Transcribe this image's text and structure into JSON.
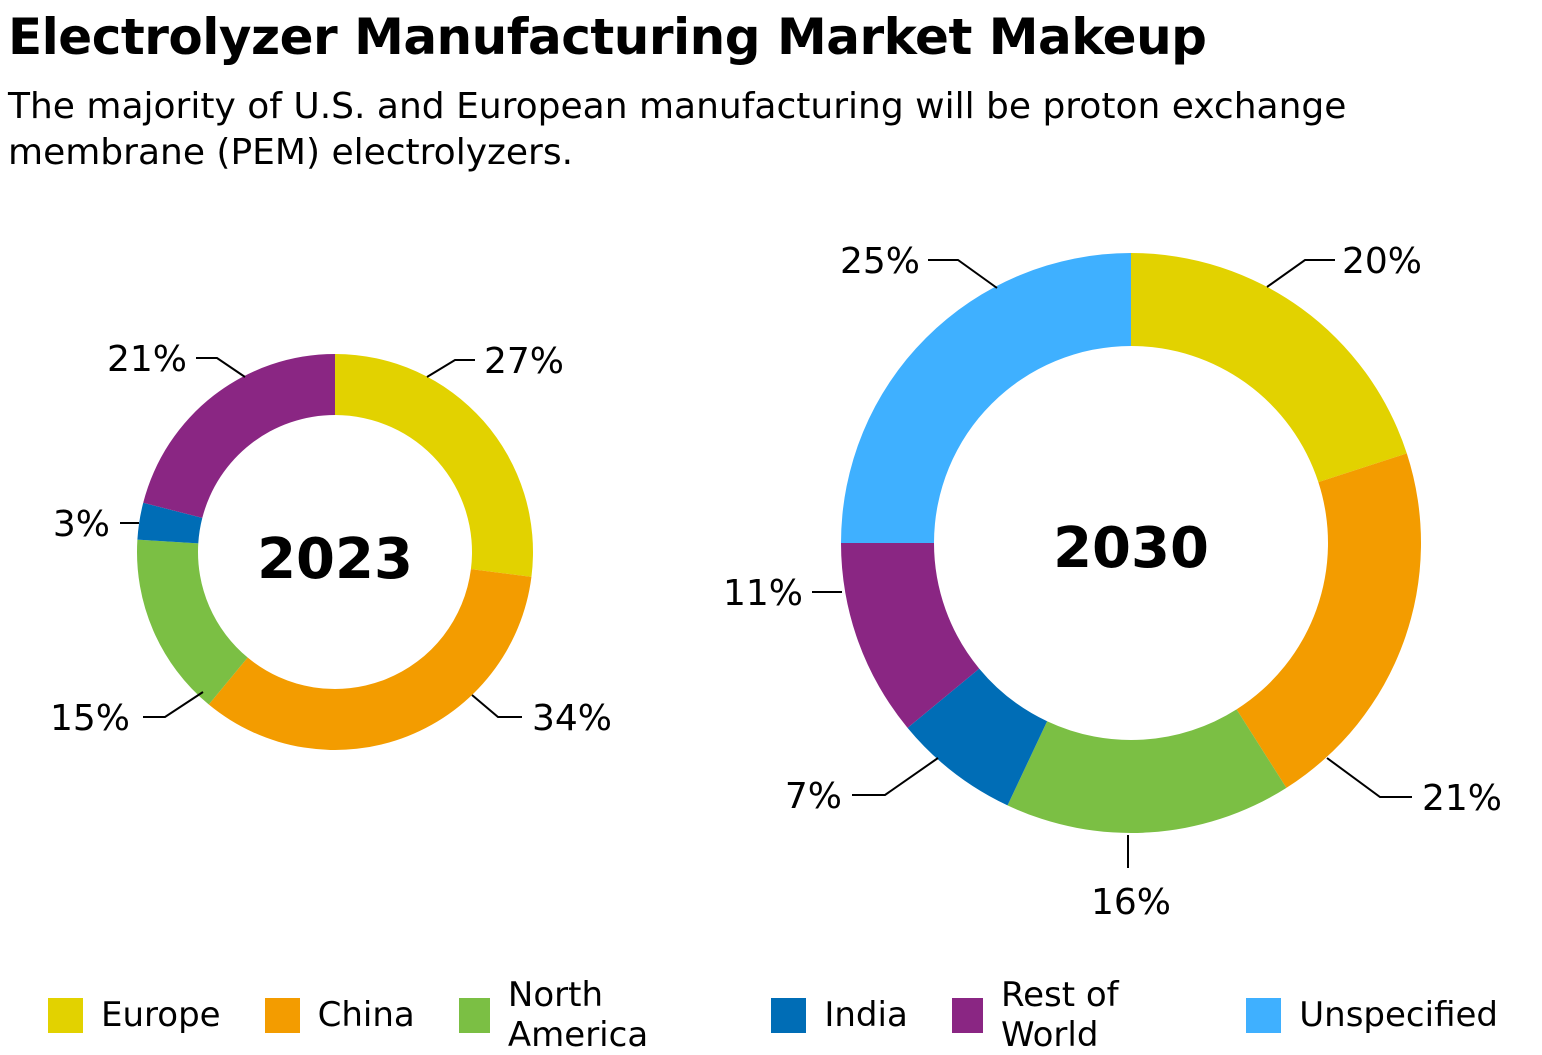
{
  "title": "Electrolyzer Manufacturing Market Makeup",
  "subtitle": "The majority of U.S. and European manufacturing will be proton exchange membrane (PEM) electrolyzers.",
  "chart_data": [
    {
      "type": "pie",
      "variant": "donut",
      "center_label": "2023",
      "categories": [
        "Europe",
        "China",
        "North America",
        "India",
        "Rest of World"
      ],
      "values": [
        27,
        34,
        15,
        3,
        21
      ],
      "data_labels": [
        "27%",
        "34%",
        "15%",
        "3%",
        "21%"
      ]
    },
    {
      "type": "pie",
      "variant": "donut",
      "center_label": "2030",
      "categories": [
        "Europe",
        "China",
        "North America",
        "India",
        "Rest of World",
        "Unspecified"
      ],
      "values": [
        20,
        21,
        16,
        7,
        11,
        25
      ],
      "data_labels": [
        "20%",
        "21%",
        "16%",
        "7%",
        "11%",
        "25%"
      ]
    }
  ],
  "legend": {
    "placement": "bottom",
    "items": [
      {
        "label": "Europe",
        "color": "#E2D200"
      },
      {
        "label": "China",
        "color": "#F39C00"
      },
      {
        "label": "North America",
        "color": "#7BBF44"
      },
      {
        "label": "India",
        "color": "#006DB6"
      },
      {
        "label": "Rest of World",
        "color": "#8A2683"
      },
      {
        "label": "Unspecified",
        "color": "#3FB0FF"
      }
    ]
  }
}
